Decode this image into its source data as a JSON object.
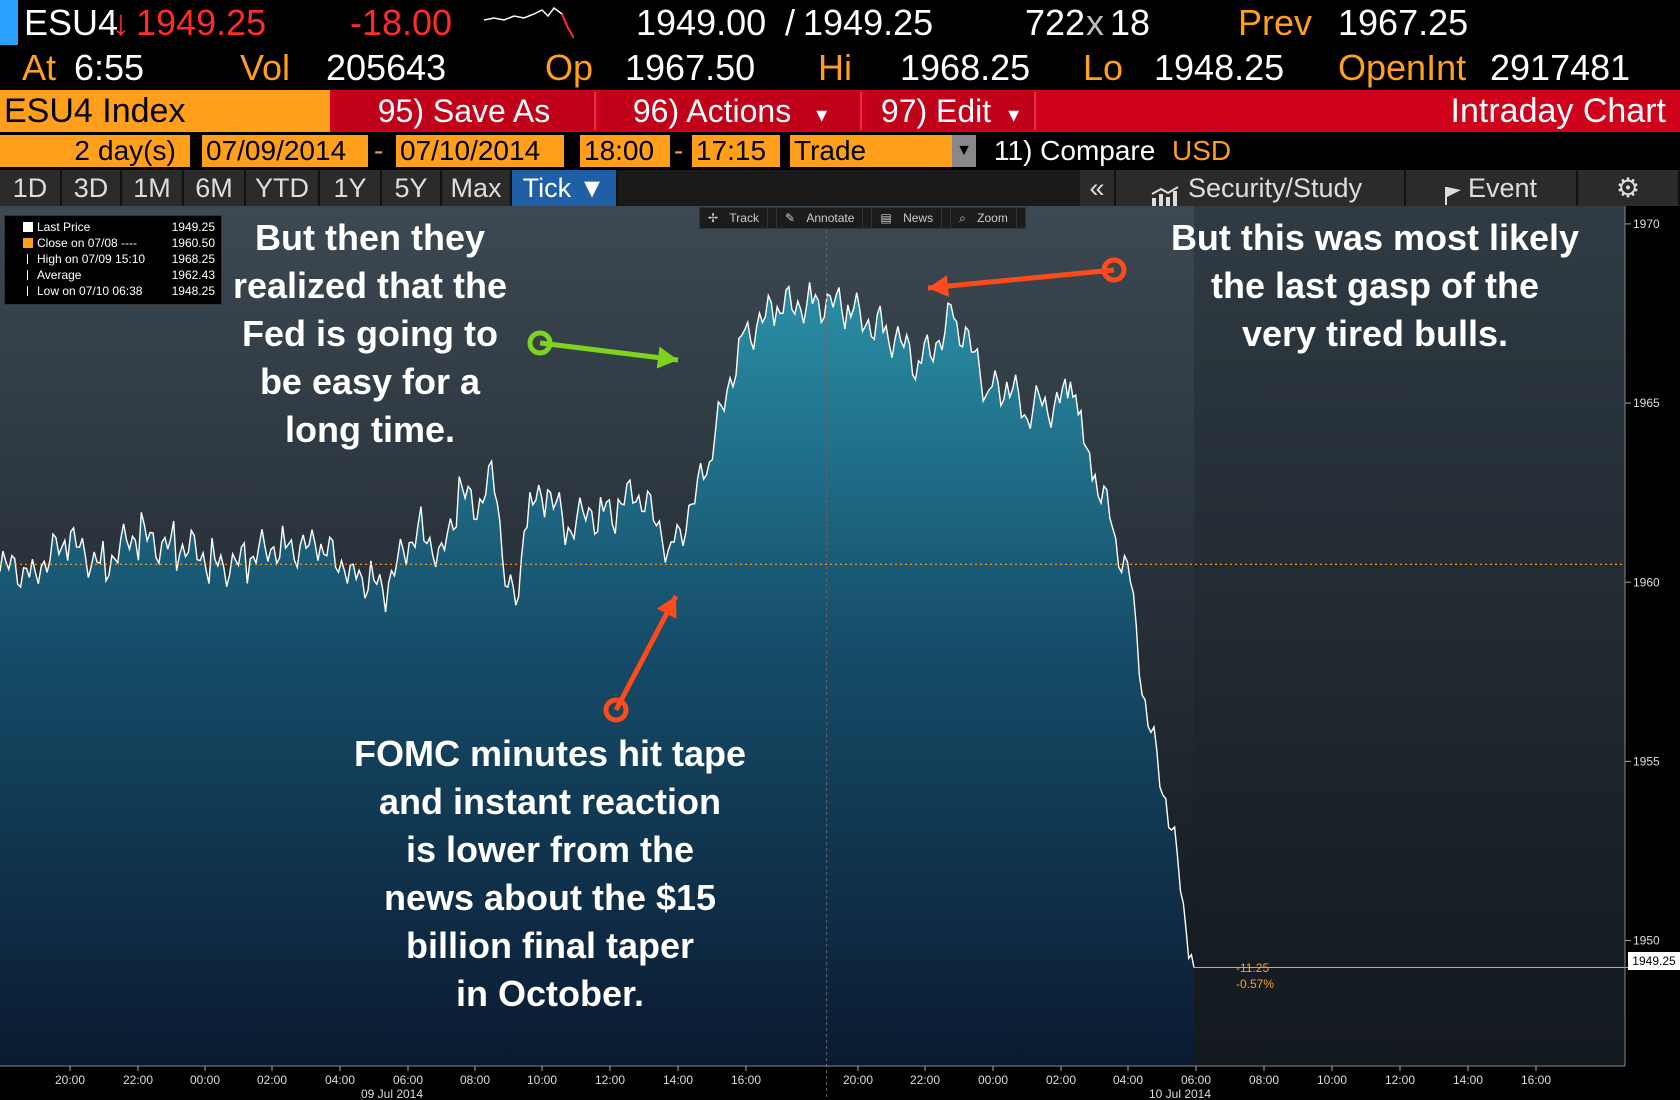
{
  "ticker": {
    "symbol": "ESU4",
    "arrow": "↓",
    "last": "1949.25",
    "change": "-18.00",
    "bid_ask_bid": "1949.00",
    "bid_ask_sep": "/",
    "bid_ask_ask": "1949.25",
    "size_a": "722",
    "size_x": "x",
    "size_b": "18",
    "prev_label": "Prev",
    "prev_value": "1967.25",
    "at_label": "At",
    "at_value": "6:55",
    "vol_label": "Vol",
    "vol_value": "205643",
    "op_label": "Op",
    "op_value": "1967.50",
    "hi_label": "Hi",
    "hi_value": "1968.25",
    "lo_label": "Lo",
    "lo_value": "1948.25",
    "oi_label": "OpenInt",
    "oi_value": "2917481"
  },
  "menu": {
    "security": "ESU4 Index",
    "save_as": "95) Save As",
    "actions": "96) Actions",
    "actions_caret": "▾",
    "edit": "97) Edit",
    "edit_caret": "▾",
    "title": "Intraday Chart"
  },
  "range": {
    "days": "2",
    "days_label": "day(s)",
    "start_date": "07/09/2014",
    "dash1": "-",
    "end_date": "07/10/2014",
    "start_time": "18:00",
    "dash2": "-",
    "end_time": "17:15",
    "mode": "Trade",
    "compare": "11) Compare",
    "currency": "USD"
  },
  "tabs": [
    "1D",
    "3D",
    "1M",
    "6M",
    "YTD",
    "1Y",
    "5Y",
    "Max",
    "Tick ▼"
  ],
  "right_tabs": {
    "collapse": "«",
    "security_study": "Security/Study",
    "event": "Event",
    "gear": "⚙"
  },
  "toolbar": {
    "track": "Track",
    "annotate": "Annotate",
    "news": "News",
    "zoom": "Zoom"
  },
  "legend": [
    {
      "name": "Last Price",
      "value": "1949.25"
    },
    {
      "name": "Close on 07/08 ----",
      "value": "1960.50"
    },
    {
      "name": "High on 07/09 15:10",
      "value": "1968.25"
    },
    {
      "name": "Average",
      "value": "1962.43"
    },
    {
      "name": "Low on 07/10 06:38",
      "value": "1948.25"
    }
  ],
  "annotations": {
    "green": [
      "But then they",
      "realized that the",
      "Fed is going to",
      "be easy for a",
      "long time."
    ],
    "bottom": [
      "FOMC minutes hit tape",
      "and instant reaction",
      "is lower from the",
      "news about the $15",
      "billion final taper",
      "in October."
    ],
    "right": [
      "But this was most likely",
      "the last gasp of the",
      "very tired bulls."
    ]
  },
  "price_tag": {
    "last": "1949.25",
    "change": "-11.25",
    "pct": "-0.57%"
  },
  "colors": {
    "orange": "#ff9f1c",
    "red_bar": "#d0021b",
    "fill_top": "#2a8fa6",
    "fill_bottom": "#0a1a30",
    "green_arrow": "#7ed321",
    "red_arrow": "#ff4a1c",
    "panel_bg": "#3a4650"
  },
  "chart_data": {
    "type": "line",
    "y_ticks": [
      "1970",
      "1965",
      "1960",
      "1955",
      "1950"
    ],
    "ylim": [
      1946.5,
      1970.5
    ],
    "reference_line": 1960.5,
    "x_ticks_day1": [
      "20:00",
      "22:00",
      "00:00",
      "02:00",
      "04:00",
      "06:00",
      "08:00",
      "10:00",
      "12:00",
      "14:00",
      "16:00"
    ],
    "x_ticks_day2": [
      "20:00",
      "22:00",
      "00:00",
      "02:00",
      "04:00",
      "06:00",
      "08:00",
      "10:00",
      "12:00",
      "14:00",
      "16:00"
    ],
    "date_label_1": "09 Jul 2014",
    "date_label_2": "10 Jul 2014",
    "series": [
      {
        "name": "Last Price",
        "x_hours": [
          0,
          1,
          2,
          3,
          4,
          5,
          6,
          7,
          8,
          9,
          10,
          10.5,
          11,
          11.5,
          12,
          12.5,
          13,
          13.5,
          14,
          14.3,
          14.6,
          15,
          15.5,
          16,
          17,
          17.5,
          18,
          19,
          20,
          21,
          22,
          23,
          24,
          25,
          26,
          27,
          28,
          28.5,
          29,
          29.5,
          30,
          30.3,
          30.6,
          31,
          31.5,
          32,
          32.5,
          33,
          33.5,
          33.8
        ],
        "values": [
          1960.3,
          1960.5,
          1961.0,
          1960.6,
          1961.3,
          1961.0,
          1960.6,
          1960.5,
          1961.2,
          1960.8,
          1960.5,
          1960.0,
          1959.8,
          1961.0,
          1961.5,
          1960.7,
          1962.5,
          1962.0,
          1963.0,
          1960.5,
          1959.8,
          1962.0,
          1962.5,
          1961.5,
          1962.0,
          1962.0,
          1962.5,
          1961.0,
          1963.0,
          1967.0,
          1967.5,
          1968.0,
          1967.5,
          1967.2,
          1966.0,
          1967.5,
          1965.3,
          1965.5,
          1964.7,
          1965.0,
          1965.0,
          1965.5,
          1964.5,
          1963.0,
          1961.5,
          1960.0,
          1956.0,
          1954.0,
          1951.0,
          1949.25
        ]
      }
    ]
  }
}
